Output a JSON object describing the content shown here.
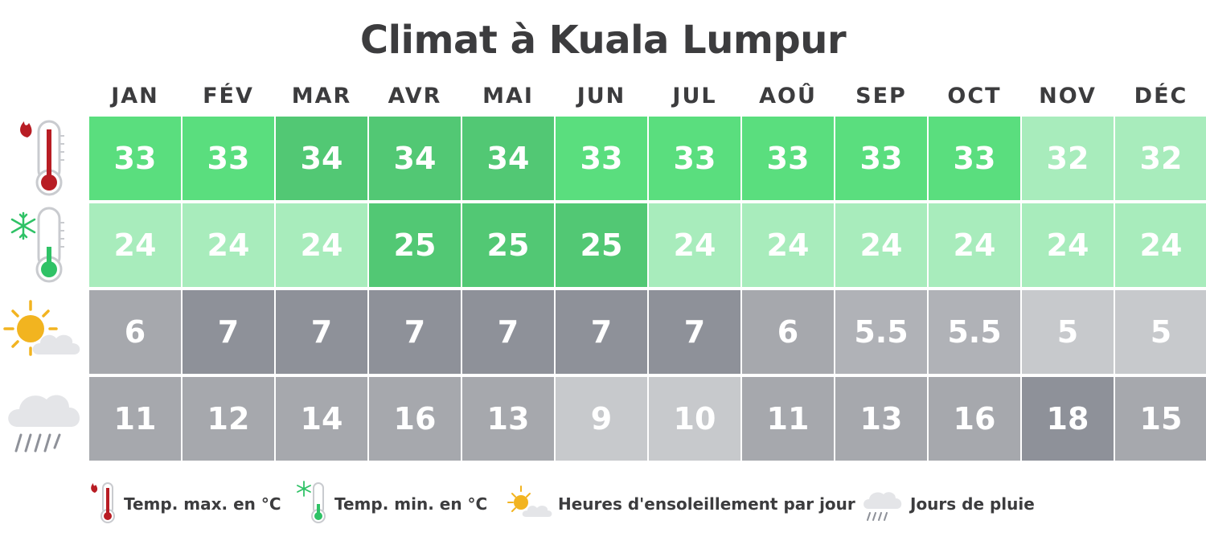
{
  "title": "Climat à Kuala Lumpur",
  "months": [
    "JAN",
    "FÉV",
    "MAR",
    "AVR",
    "MAI",
    "JUN",
    "JUL",
    "AOÛ",
    "SEP",
    "OCT",
    "NOV",
    "DÉC"
  ],
  "chart_data": {
    "type": "table",
    "title": "Climat à Kuala Lumpur",
    "categories": [
      "JAN",
      "FÉV",
      "MAR",
      "AVR",
      "MAI",
      "JUN",
      "JUL",
      "AOÛ",
      "SEP",
      "OCT",
      "NOV",
      "DÉC"
    ],
    "series": [
      {
        "name": "Temp. max. en °C",
        "icon": "hot-thermometer-icon",
        "values": [
          "33",
          "33",
          "34",
          "34",
          "34",
          "33",
          "33",
          "33",
          "33",
          "33",
          "32",
          "32"
        ]
      },
      {
        "name": "Temp. min. en °C",
        "icon": "cold-thermometer-icon",
        "values": [
          "24",
          "24",
          "24",
          "25",
          "25",
          "25",
          "24",
          "24",
          "24",
          "24",
          "24",
          "24"
        ]
      },
      {
        "name": "Heures d'ensoleillement par jour",
        "icon": "sun-cloud-icon",
        "values": [
          "6",
          "7",
          "7",
          "7",
          "7",
          "7",
          "7",
          "6",
          "5.5",
          "5.5",
          "5",
          "5"
        ]
      },
      {
        "name": "Jours de pluie",
        "icon": "rain-cloud-icon",
        "values": [
          "11",
          "12",
          "14",
          "16",
          "13",
          "9",
          "10",
          "11",
          "13",
          "16",
          "18",
          "15"
        ]
      }
    ]
  },
  "cell_colors": {
    "max_temp": [
      "#5ade7e",
      "#5ade7e",
      "#52c874",
      "#52c874",
      "#52c874",
      "#5ade7e",
      "#5ade7e",
      "#5ade7e",
      "#5ade7e",
      "#5ade7e",
      "#a8ecbc",
      "#a8ecbc"
    ],
    "min_temp": [
      "#a8ecbc",
      "#a8ecbc",
      "#a8ecbc",
      "#52c874",
      "#52c874",
      "#52c874",
      "#a8ecbc",
      "#a8ecbc",
      "#a8ecbc",
      "#a8ecbc",
      "#a8ecbc",
      "#a8ecbc"
    ],
    "sun": [
      "#a6a8ad",
      "#8e9199",
      "#8e9199",
      "#8e9199",
      "#8e9199",
      "#8e9199",
      "#8e9199",
      "#a6a8ad",
      "#b0b2b7",
      "#b0b2b7",
      "#c7c9cc",
      "#c7c9cc"
    ],
    "rain": [
      "#a6a8ad",
      "#a6a8ad",
      "#a6a8ad",
      "#a6a8ad",
      "#a6a8ad",
      "#c7c9cc",
      "#c7c9cc",
      "#a6a8ad",
      "#a6a8ad",
      "#a6a8ad",
      "#8e9199",
      "#a6a8ad"
    ]
  },
  "legend": [
    {
      "label": "Temp. max. en °C",
      "icon": "hot-thermometer-icon"
    },
    {
      "label": "Temp. min. en °C",
      "icon": "cold-thermometer-icon"
    },
    {
      "label": "Heures d'ensoleillement par jour",
      "icon": "sun-cloud-icon"
    },
    {
      "label": "Jours de pluie",
      "icon": "rain-cloud-icon"
    }
  ]
}
